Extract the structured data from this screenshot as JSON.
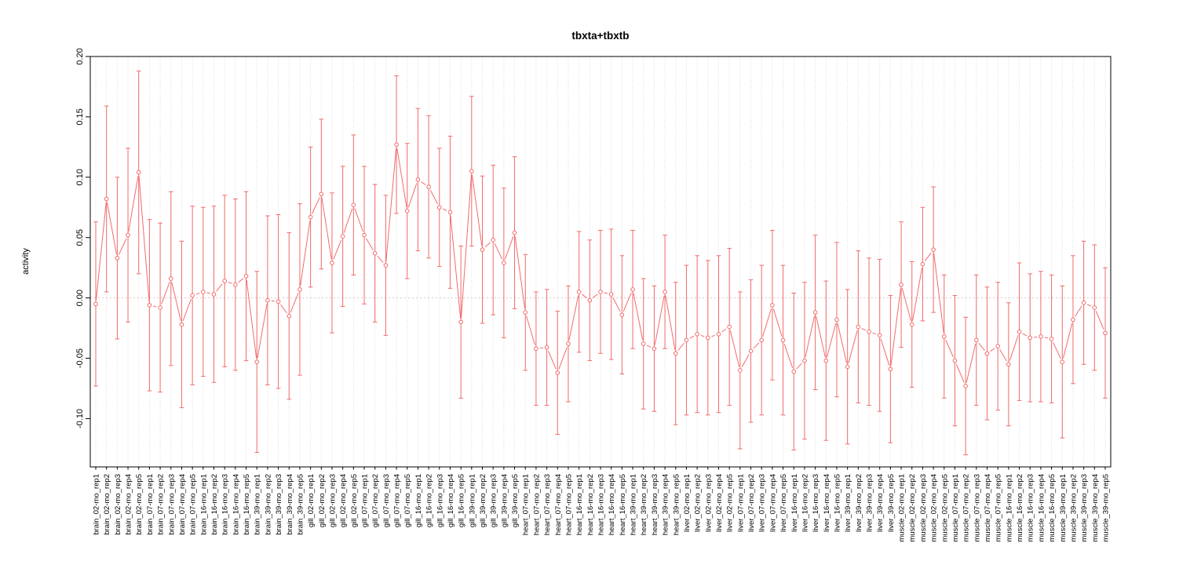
{
  "figure": {
    "background": "#ffffff"
  },
  "chart_data": {
    "type": "line",
    "subtype": "points-with-error-bars",
    "title": "tbxta+tbxtb",
    "xlabel": "",
    "ylabel": "activity",
    "ylim": [
      -0.14,
      0.2
    ],
    "ytick_values": [
      -0.1,
      -0.05,
      0,
      0.05,
      0.1,
      0.15,
      0.2
    ],
    "ytick_labels": [
      "-0.10",
      "-0.05",
      "0.00",
      "0.05",
      "0.10",
      "0.15",
      "0.20"
    ],
    "grid": {
      "vertical_per_category": true,
      "zero_line_dotted": true
    },
    "legend_position": "none",
    "marker": "open-circle",
    "error_bars": true,
    "colors": {
      "series": "#f26b6b",
      "grid": "#dcdcdc",
      "zero_line": "#ddc4c4",
      "axis": "#000000",
      "text": "#000000",
      "background": "#ffffff"
    },
    "categories": [
      "brain_02-mo_rep1",
      "brain_02-mo_rep2",
      "brain_02-mo_rep3",
      "brain_02-mo_rep4",
      "brain_02-mo_rep5",
      "brain_07-mo_rep1",
      "brain_07-mo_rep2",
      "brain_07-mo_rep3",
      "brain_07-mo_rep4",
      "brain_07-mo_rep5",
      "brain_16-mo_rep1",
      "brain_16-mo_rep2",
      "brain_16-mo_rep3",
      "brain_16-mo_rep4",
      "brain_16-mo_rep5",
      "brain_39-mo_rep1",
      "brain_39-mo_rep2",
      "brain_39-mo_rep3",
      "brain_39-mo_rep4",
      "brain_39-mo_rep5",
      "gill_02-mo_rep1",
      "gill_02-mo_rep2",
      "gill_02-mo_rep3",
      "gill_02-mo_rep4",
      "gill_02-mo_rep5",
      "gill_07-mo_rep1",
      "gill_07-mo_rep2",
      "gill_07-mo_rep3",
      "gill_07-mo_rep4",
      "gill_07-mo_rep5",
      "gill_16-mo_rep1",
      "gill_16-mo_rep2",
      "gill_16-mo_rep3",
      "gill_16-mo_rep4",
      "gill_16-mo_rep5",
      "gill_39-mo_rep1",
      "gill_39-mo_rep2",
      "gill_39-mo_rep3",
      "gill_39-mo_rep4",
      "gill_39-mo_rep5",
      "heart_07-mo_rep1",
      "heart_07-mo_rep2",
      "heart_07-mo_rep3",
      "heart_07-mo_rep4",
      "heart_07-mo_rep5",
      "heart_16-mo_rep1",
      "heart_16-mo_rep2",
      "heart_16-mo_rep3",
      "heart_16-mo_rep4",
      "heart_16-mo_rep5",
      "heart_39-mo_rep1",
      "heart_39-mo_rep2",
      "heart_39-mo_rep3",
      "heart_39-mo_rep4",
      "heart_39-mo_rep5",
      "liver_02-mo_rep1",
      "liver_02-mo_rep2",
      "liver_02-mo_rep3",
      "liver_02-mo_rep4",
      "liver_02-mo_rep5",
      "liver_07-mo_rep1",
      "liver_07-mo_rep2",
      "liver_07-mo_rep3",
      "liver_07-mo_rep4",
      "liver_07-mo_rep5",
      "liver_16-mo_rep1",
      "liver_16-mo_rep2",
      "liver_16-mo_rep3",
      "liver_16-mo_rep4",
      "liver_16-mo_rep5",
      "liver_39-mo_rep1",
      "liver_39-mo_rep2",
      "liver_39-mo_rep3",
      "liver_39-mo_rep4",
      "liver_39-mo_rep5",
      "muscle_02-mo_rep1",
      "muscle_02-mo_rep2",
      "muscle_02-mo_rep3",
      "muscle_02-mo_rep4",
      "muscle_02-mo_rep5",
      "muscle_07-mo_rep1",
      "muscle_07-mo_rep2",
      "muscle_07-mo_rep3",
      "muscle_07-mo_rep4",
      "muscle_07-mo_rep5",
      "muscle_16-mo_rep1",
      "muscle_16-mo_rep2",
      "muscle_16-mo_rep3",
      "muscle_16-mo_rep4",
      "muscle_16-mo_rep5",
      "muscle_39-mo_rep1",
      "muscle_39-mo_rep2",
      "muscle_39-mo_rep3",
      "muscle_39-mo_rep4",
      "muscle_39-mo_rep5"
    ],
    "series": [
      {
        "name": "activity",
        "values": [
          -0.005,
          0.082,
          0.033,
          0.052,
          0.104,
          -0.006,
          -0.008,
          0.016,
          -0.022,
          0.002,
          0.005,
          0.003,
          0.014,
          0.011,
          0.018,
          -0.053,
          -0.002,
          -0.003,
          -0.015,
          0.007,
          0.067,
          0.086,
          0.029,
          0.051,
          0.077,
          0.052,
          0.037,
          0.027,
          0.127,
          0.072,
          0.098,
          0.092,
          0.075,
          0.071,
          -0.02,
          0.105,
          0.04,
          0.048,
          0.029,
          0.054,
          -0.012,
          -0.042,
          -0.041,
          -0.062,
          -0.038,
          0.005,
          -0.002,
          0.005,
          0.003,
          -0.014,
          0.007,
          -0.038,
          -0.042,
          0.005,
          -0.046,
          -0.035,
          -0.03,
          -0.033,
          -0.03,
          -0.024,
          -0.06,
          -0.044,
          -0.035,
          -0.006,
          -0.035,
          -0.061,
          -0.052,
          -0.012,
          -0.052,
          -0.018,
          -0.057,
          -0.024,
          -0.028,
          -0.031,
          -0.059,
          0.011,
          -0.022,
          0.028,
          0.04,
          -0.032,
          -0.052,
          -0.073,
          -0.035,
          -0.046,
          -0.04,
          -0.055,
          -0.028,
          -0.033,
          -0.032,
          -0.034,
          -0.053,
          -0.018,
          -0.004,
          -0.008,
          -0.029
        ],
        "err": [
          0.068,
          0.077,
          0.067,
          0.072,
          0.084,
          0.071,
          0.07,
          0.072,
          0.069,
          0.074,
          0.07,
          0.073,
          0.071,
          0.071,
          0.07,
          0.075,
          0.07,
          0.072,
          0.069,
          0.071,
          0.058,
          0.062,
          0.058,
          0.058,
          0.058,
          0.057,
          0.057,
          0.058,
          0.057,
          0.056,
          0.059,
          0.059,
          0.049,
          0.063,
          0.063,
          0.062,
          0.061,
          0.062,
          0.062,
          0.063,
          0.048,
          0.047,
          0.048,
          0.051,
          0.048,
          0.05,
          0.05,
          0.051,
          0.054,
          0.049,
          0.049,
          0.054,
          0.052,
          0.047,
          0.059,
          0.062,
          0.065,
          0.064,
          0.065,
          0.065,
          0.065,
          0.059,
          0.062,
          0.062,
          0.062,
          0.065,
          0.065,
          0.064,
          0.066,
          0.064,
          0.064,
          0.063,
          0.061,
          0.063,
          0.061,
          0.052,
          0.052,
          0.047,
          0.052,
          0.051,
          0.054,
          0.057,
          0.054,
          0.055,
          0.053,
          0.051,
          0.057,
          0.053,
          0.054,
          0.053,
          0.063,
          0.053,
          0.051,
          0.052,
          0.054
        ]
      }
    ]
  }
}
